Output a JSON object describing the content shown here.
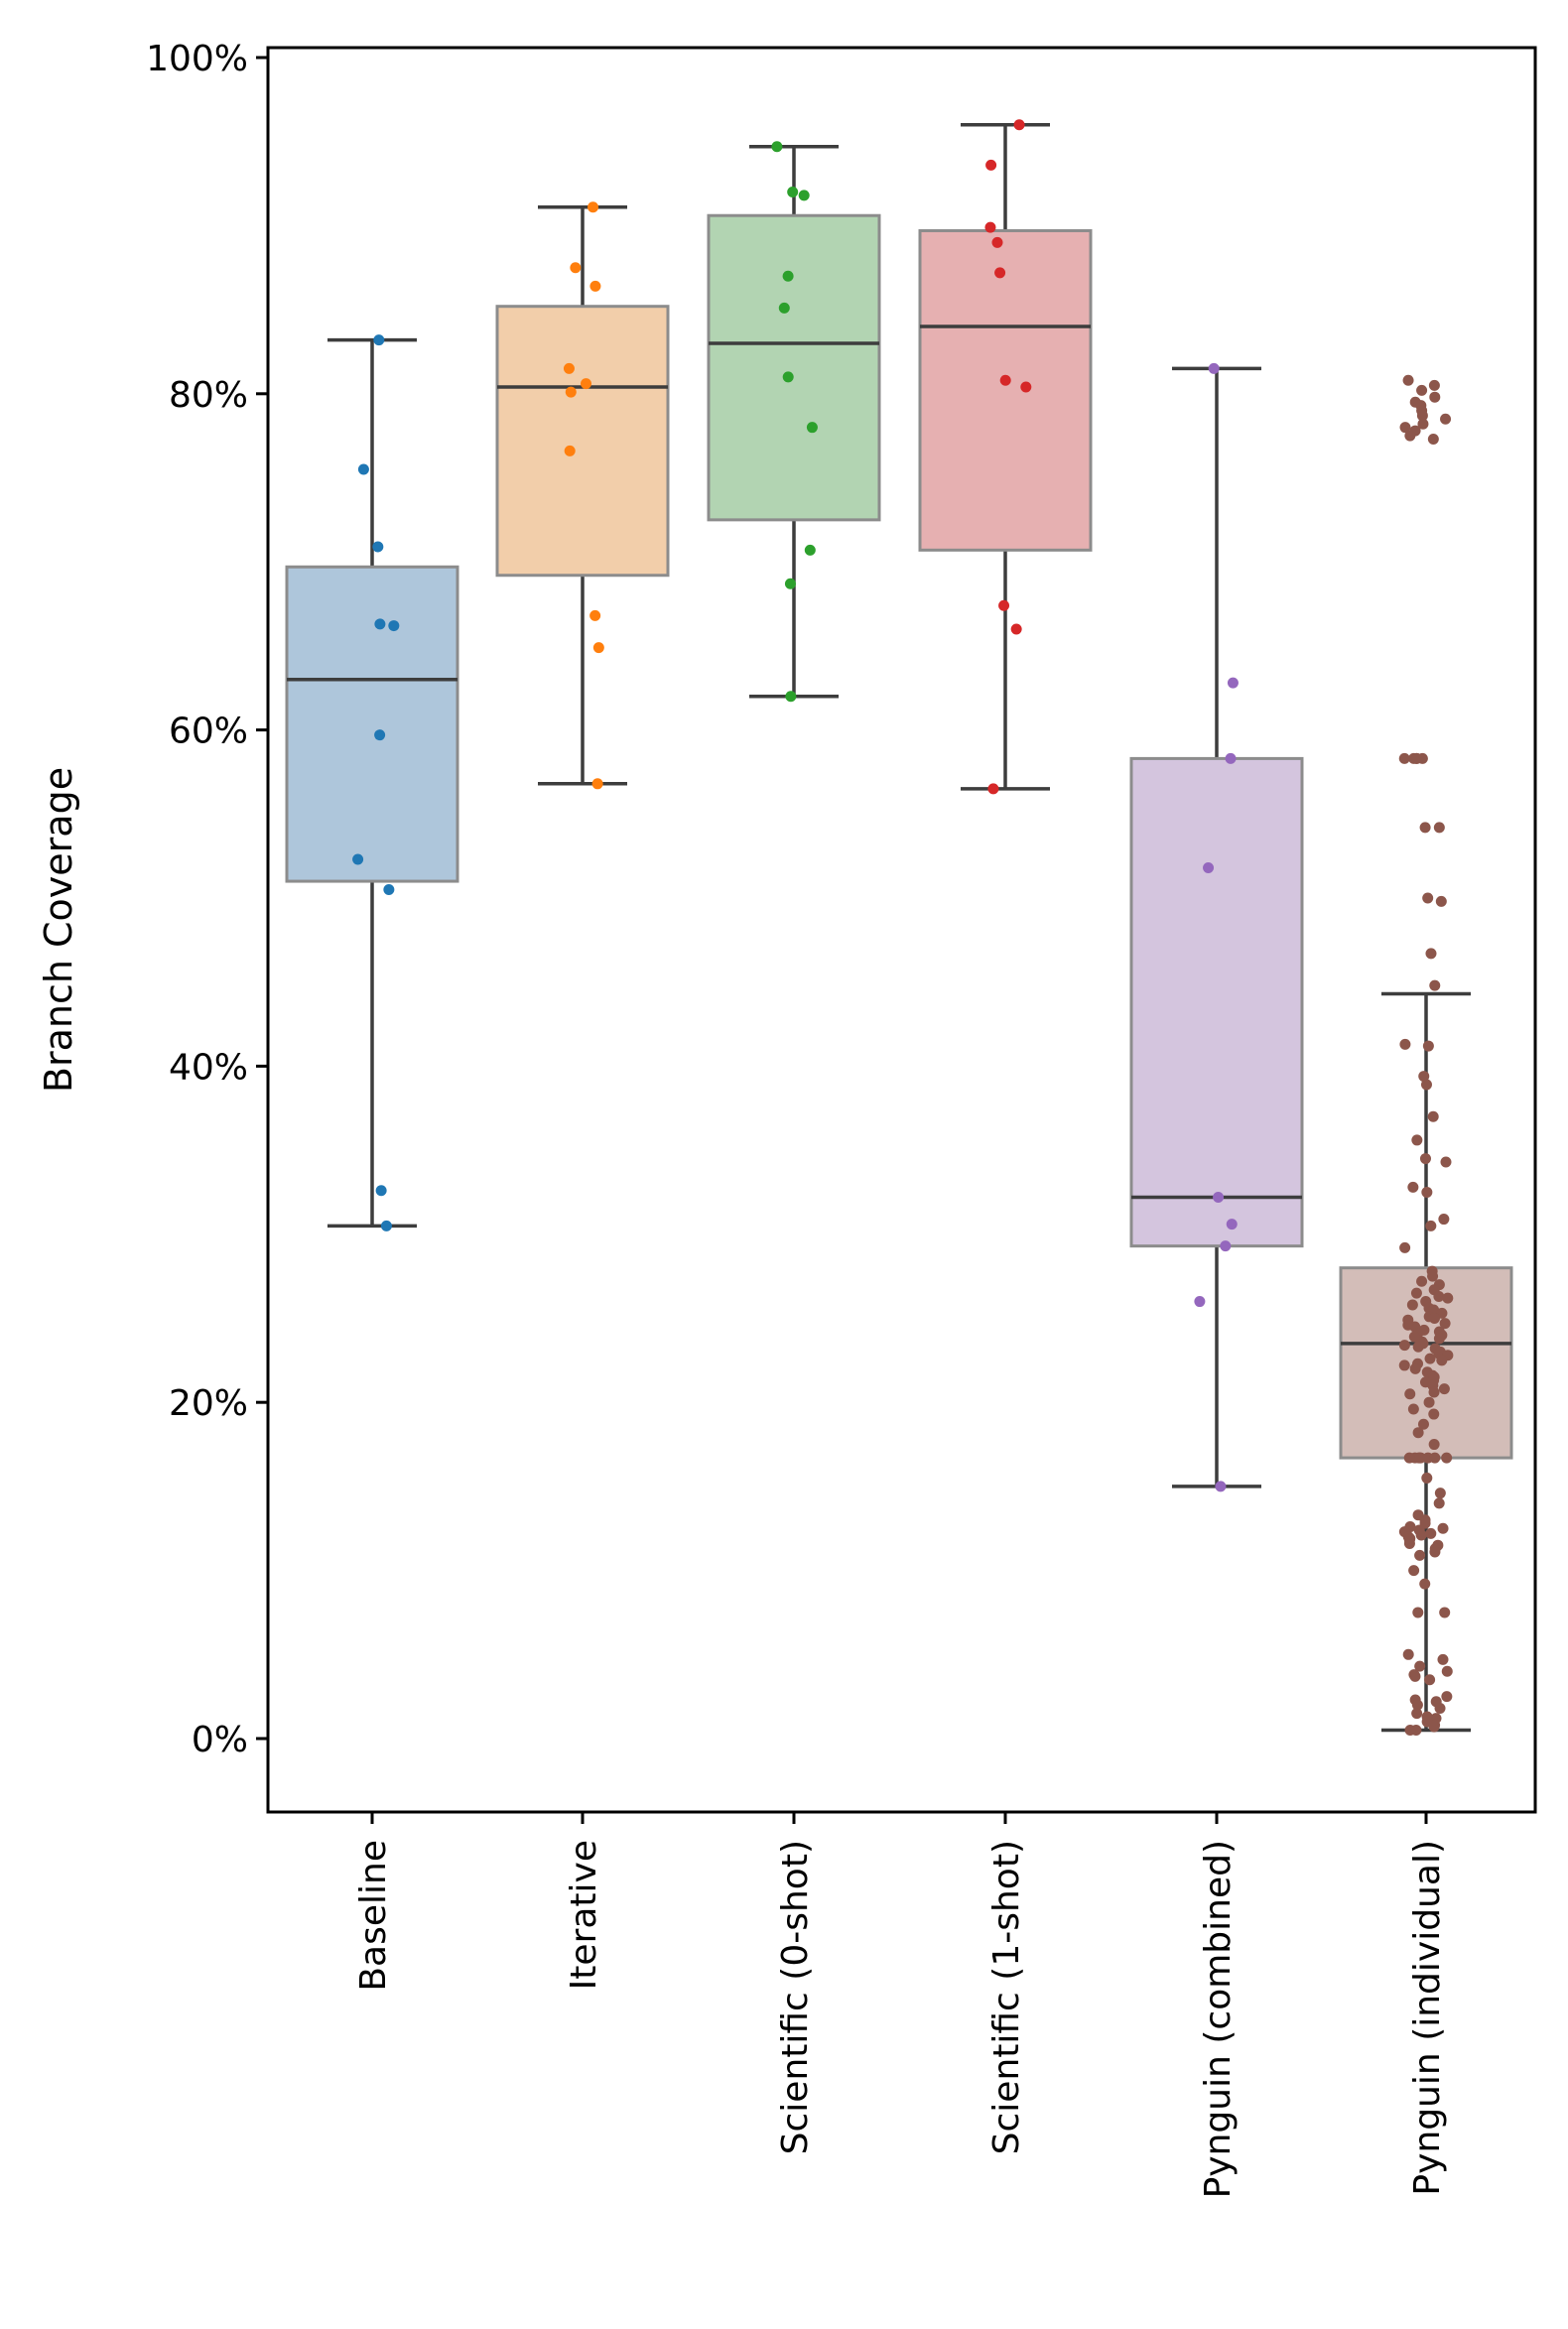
{
  "chart_data": {
    "type": "box",
    "title": "",
    "xlabel": "",
    "ylabel": "Branch Coverage",
    "ylim": [
      -4.3,
      100.4
    ],
    "y_ticks": [
      0,
      20,
      40,
      60,
      80,
      100
    ],
    "y_tick_labels": [
      "0%",
      "20%",
      "40%",
      "60%",
      "80%",
      "100%"
    ],
    "grid": false,
    "categories": [
      "Baseline",
      "Iterative",
      "Scientific (0-shot)",
      "Scientific (1-shot)",
      "Pynguin (combined)",
      "Pynguin (individual)"
    ],
    "series": [
      {
        "name": "Baseline",
        "color": "#1f77b4",
        "box_color": "#aec6db",
        "stats": {
          "min": 30.5,
          "q1": 51.0,
          "median": 63.0,
          "q3": 69.7,
          "max": 83.2
        },
        "points": [
          83.2,
          75.5,
          70.9,
          66.2,
          66.3,
          59.7,
          52.3,
          50.5,
          32.6,
          30.5
        ]
      },
      {
        "name": "Iterative",
        "color": "#ff7f0e",
        "box_color": "#f2ceaa",
        "stats": {
          "min": 56.8,
          "q1": 69.2,
          "median": 80.4,
          "q3": 85.2,
          "max": 91.1
        },
        "points": [
          91.1,
          87.5,
          86.4,
          81.5,
          80.6,
          80.1,
          76.6,
          66.8,
          64.9,
          56.8
        ]
      },
      {
        "name": "Scientific (0-shot)",
        "color": "#2ca02c",
        "box_color": "#b2d4b2",
        "stats": {
          "min": 62.0,
          "q1": 72.5,
          "median": 83.0,
          "q3": 90.6,
          "max": 94.7
        },
        "points": [
          94.7,
          92.0,
          91.8,
          87.0,
          85.1,
          81.0,
          78.0,
          70.7,
          68.7,
          62.0
        ]
      },
      {
        "name": "Scientific (1-shot)",
        "color": "#d62728",
        "box_color": "#e6b0b1",
        "stats": {
          "min": 56.5,
          "q1": 70.7,
          "median": 84.0,
          "q3": 89.7,
          "max": 96.0
        },
        "points": [
          96.0,
          93.6,
          89.9,
          89.0,
          87.2,
          80.8,
          80.4,
          67.4,
          66.0,
          56.5
        ]
      },
      {
        "name": "Pynguin (combined)",
        "color": "#9467bd",
        "box_color": "#d4c5de",
        "stats": {
          "min": 15.0,
          "q1": 29.3,
          "median": 32.2,
          "q3": 58.3,
          "max": 81.5
        },
        "points": [
          81.5,
          62.8,
          58.3,
          51.8,
          32.2,
          30.6,
          29.3,
          26.0,
          15.0
        ]
      },
      {
        "name": "Pynguin (individual)",
        "color": "#8c564b",
        "box_color": "#d3bdb8",
        "stats": {
          "min": 0.5,
          "q1": 16.7,
          "median": 23.5,
          "q3": 28.0,
          "max": 44.3
        },
        "points": [
          80.8,
          80.5,
          80.2,
          79.8,
          79.5,
          79.3,
          79.0,
          78.7,
          78.5,
          78.2,
          78.0,
          77.8,
          77.5,
          77.3,
          58.3,
          58.3,
          58.3,
          58.3,
          58.3,
          54.2,
          54.2,
          50.0,
          49.8,
          46.7,
          44.8,
          41.3,
          41.2,
          39.4,
          38.9,
          37.0,
          35.6,
          34.5,
          34.3,
          32.8,
          32.5,
          30.9,
          30.5,
          29.2,
          27.8,
          27.5,
          27.2,
          27.0,
          26.7,
          26.5,
          26.3,
          26.2,
          26.0,
          25.8,
          25.6,
          25.5,
          25.3,
          25.1,
          25.0,
          24.9,
          24.7,
          24.6,
          24.5,
          24.3,
          24.2,
          24.1,
          24.0,
          23.9,
          23.8,
          23.6,
          23.5,
          23.4,
          23.3,
          23.2,
          23.0,
          22.9,
          22.8,
          22.6,
          22.5,
          22.3,
          22.2,
          22.0,
          21.8,
          21.6,
          21.5,
          21.3,
          21.2,
          21.0,
          20.8,
          20.6,
          20.5,
          20.0,
          19.6,
          19.3,
          18.7,
          18.2,
          17.5,
          16.7,
          16.7,
          16.7,
          16.7,
          16.7,
          16.7,
          16.7,
          16.7,
          15.5,
          14.6,
          14.0,
          13.3,
          13.0,
          12.8,
          12.6,
          12.5,
          12.4,
          12.3,
          12.2,
          12.1,
          12.0,
          11.9,
          11.8,
          11.6,
          11.5,
          11.3,
          11.1,
          10.9,
          10.0,
          9.2,
          7.5,
          7.5,
          5.0,
          4.7,
          4.3,
          4.0,
          3.8,
          3.7,
          3.5,
          2.5,
          2.3,
          2.2,
          2.0,
          1.8,
          1.5,
          1.3,
          1.2,
          1.0,
          0.8,
          0.7,
          0.5,
          0.5
        ]
      }
    ]
  }
}
